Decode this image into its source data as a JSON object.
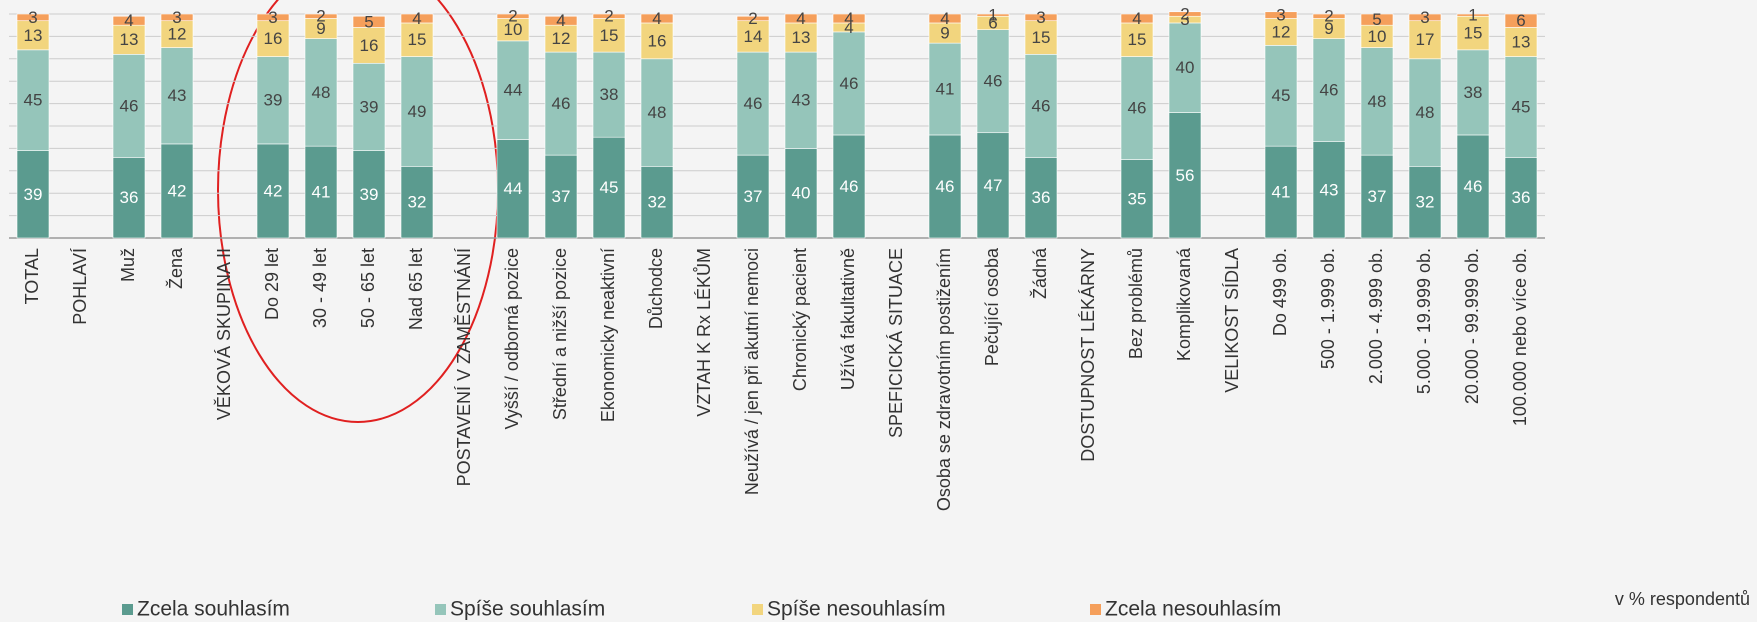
{
  "chart_data": {
    "type": "stacked_bar",
    "categories": [
      "TOTAL",
      "POHLAVÍ",
      "Muž",
      "Žena",
      "VĚKOVÁ SKUPINA II",
      "Do 29 let",
      "30 - 49 let",
      "50 - 65 let",
      "Nad 65 let",
      "POSTAVENÍ V ZAMĚSTNÁNÍ",
      "Vyšší / odborná pozice",
      "Střední a nižší pozice",
      "Ekonomicky neaktivní",
      "Důchodce",
      "VZTAH K Rx LÉKŮM",
      "Neužívá / jen při akutní nemoci",
      "Chronický pacient",
      "Užívá fakultativně",
      "SPEFICICKÁ SITUACE",
      "Osoba se zdravotním postižením",
      "Pečující osoba",
      "Žádná",
      "DOSTUPNOST LÉKÁRNY",
      "Bez problémů",
      "Komplikovaná",
      "VELIKOST SÍDLA",
      "Do 499 ob.",
      "500 - 1.999 ob.",
      "2.000 - 4.999 ob.",
      "5.000 - 19.999 ob.",
      "20.000 - 99.999 ob.",
      "100.000 nebo více ob."
    ],
    "series": [
      {
        "name": "Zcela souhlasím",
        "color": "#5b9b8f",
        "values": [
          39,
          null,
          36,
          42,
          null,
          42,
          41,
          39,
          32,
          null,
          44,
          37,
          45,
          32,
          null,
          37,
          40,
          46,
          null,
          46,
          47,
          36,
          null,
          35,
          56,
          null,
          41,
          43,
          37,
          32,
          46,
          36
        ]
      },
      {
        "name": "Spíše souhlasím",
        "color": "#95c5ba",
        "values": [
          45,
          null,
          46,
          43,
          null,
          39,
          48,
          39,
          49,
          null,
          44,
          46,
          38,
          48,
          null,
          46,
          43,
          46,
          null,
          41,
          46,
          46,
          null,
          46,
          40,
          null,
          45,
          46,
          48,
          48,
          38,
          45
        ]
      },
      {
        "name": "Spíše nesouhlasím",
        "color": "#f2d57e",
        "values": [
          13,
          null,
          13,
          12,
          null,
          16,
          9,
          16,
          15,
          null,
          10,
          12,
          15,
          16,
          null,
          14,
          13,
          4,
          null,
          9,
          6,
          15,
          null,
          15,
          3,
          null,
          12,
          9,
          10,
          17,
          15,
          13
        ]
      },
      {
        "name": "Zcela nesouhlasím",
        "color": "#f59f5b",
        "values": [
          3,
          null,
          4,
          3,
          null,
          3,
          2,
          5,
          4,
          null,
          2,
          4,
          2,
          4,
          null,
          2,
          4,
          4,
          null,
          4,
          1,
          3,
          null,
          4,
          2,
          null,
          3,
          2,
          5,
          3,
          1,
          6
        ]
      }
    ],
    "ylim": [
      0,
      100
    ],
    "yticks": [
      0,
      10,
      20,
      30,
      40,
      50,
      60,
      70,
      80,
      90,
      100
    ],
    "grid": true,
    "annotation": "v % respondentů"
  }
}
